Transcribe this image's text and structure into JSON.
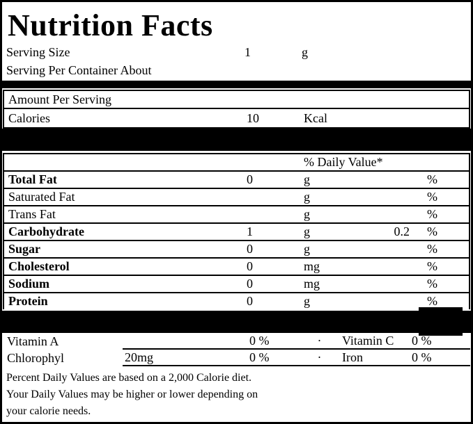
{
  "title": "Nutrition Facts",
  "serving": {
    "size_label": "Serving Size",
    "size_value": "1",
    "size_unit": "g",
    "per_container_label": "Serving Per Container About"
  },
  "amount_per_serving_label": "Amount Per Serving",
  "calories": {
    "label": "Calories",
    "value": "10",
    "unit": "Kcal"
  },
  "daily_value_header": "% Daily Value*",
  "nutrients": [
    {
      "name": "Total Fat",
      "amount": "0",
      "unit": "g",
      "daily_value": "",
      "percent_sign": "%"
    },
    {
      "name": "Saturated Fat",
      "amount": "",
      "unit": "g",
      "daily_value": "",
      "percent_sign": "%"
    },
    {
      "name": "Trans Fat",
      "amount": "",
      "unit": "g",
      "daily_value": "",
      "percent_sign": "%"
    },
    {
      "name": "Carbohydrate",
      "amount": "1",
      "unit": "g",
      "daily_value": "0.2",
      "percent_sign": "%"
    },
    {
      "name": "Sugar",
      "amount": "0",
      "unit": "g",
      "daily_value": "",
      "percent_sign": "%"
    },
    {
      "name": "Cholesterol",
      "amount": "0",
      "unit": "mg",
      "daily_value": "",
      "percent_sign": "%"
    },
    {
      "name": "Sodium",
      "amount": "0",
      "unit": "mg",
      "daily_value": "",
      "percent_sign": "%"
    },
    {
      "name": "Protein",
      "amount": "0",
      "unit": "g",
      "daily_value": "",
      "percent_sign": "%"
    }
  ],
  "vitamins": [
    {
      "name": "Vitamin A",
      "amount": "",
      "percent": "0 %",
      "bullet": "·",
      "name2": "Vitamin C",
      "percent2": "0 %"
    },
    {
      "name": "Chlorophyl",
      "amount": "20mg",
      "percent": "0 %",
      "bullet": "·",
      "name2": "Iron",
      "percent2": "0 %"
    }
  ],
  "footnote_lines": [
    "Percent Daily Values are based on a 2,000 Calorie diet.",
    "Your Daily Values may be higher or lower depending on",
    "your calorie needs."
  ],
  "colors": {
    "border": "#000000",
    "background": "#ffffff",
    "text": "#000000"
  }
}
